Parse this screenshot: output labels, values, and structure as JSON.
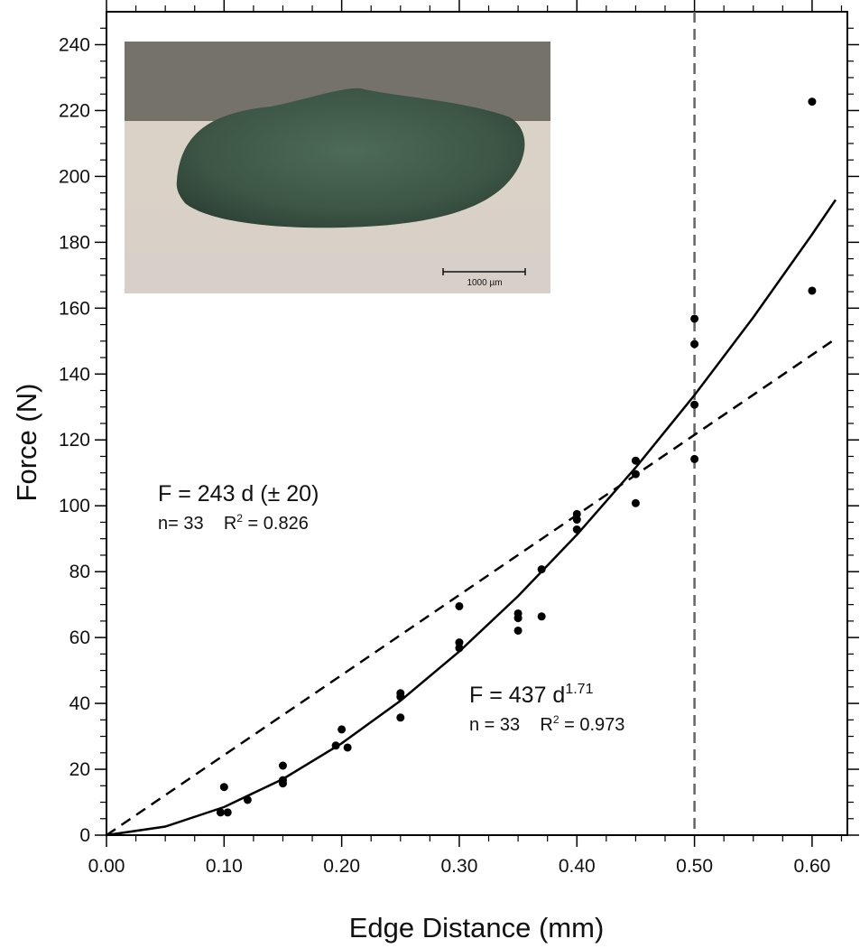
{
  "chart_data": {
    "type": "scatter",
    "x_label": "Edge Distance (mm)",
    "y_label": "Force (N)",
    "xlim": [
      0,
      0.63
    ],
    "ylim": [
      0,
      250
    ],
    "xticks": [
      {
        "value": 0,
        "label": "0.00"
      },
      {
        "value": 0.1,
        "label": "0.10"
      },
      {
        "value": 0.2,
        "label": "0.20"
      },
      {
        "value": 0.3,
        "label": "0.30"
      },
      {
        "value": 0.4,
        "label": "0.40"
      },
      {
        "value": 0.5,
        "label": "0.50"
      },
      {
        "value": 0.6,
        "label": "0.60"
      }
    ],
    "yticks": [
      0,
      20,
      40,
      60,
      80,
      100,
      120,
      140,
      160,
      180,
      200,
      220,
      240
    ],
    "grid": false,
    "color": "#000000",
    "x": [
      0.097,
      0.103,
      0.1,
      0.12,
      0.15,
      0.15,
      0.15,
      0.195,
      0.2,
      0.205,
      0.25,
      0.25,
      0.25,
      0.3,
      0.3,
      0.3,
      0.35,
      0.35,
      0.35,
      0.37,
      0.37,
      0.4,
      0.4,
      0.4,
      0.45,
      0.45,
      0.45,
      0.5,
      0.5,
      0.5,
      0.5,
      0.6,
      0.6
    ],
    "values": [
      6.9,
      6.9,
      14.6,
      10.7,
      21.1,
      16.7,
      15.7,
      27.2,
      32.1,
      26.6,
      43.1,
      42.0,
      35.7,
      69.5,
      58.5,
      56.8,
      67.3,
      65.9,
      62.1,
      80.7,
      66.4,
      97.5,
      95.8,
      92.8,
      113.7,
      109.6,
      100.8,
      156.8,
      149.1,
      130.7,
      114.2,
      222.7,
      165.3
    ],
    "fits": [
      {
        "dashed": true,
        "color": "#000000",
        "x": [
          0,
          0.62
        ],
        "values": [
          0,
          150.7
        ]
      },
      {
        "dashed": false,
        "color": "#000000",
        "x": [
          0,
          0.05,
          0.1,
          0.15,
          0.2,
          0.25,
          0.3,
          0.35,
          0.4,
          0.45,
          0.5,
          0.55,
          0.6,
          0.62
        ],
        "values": [
          0,
          2.6,
          8.53,
          17.03,
          27.88,
          40.82,
          55.76,
          72.58,
          91.2,
          111.6,
          133.6,
          157.2,
          182.4,
          192.9
        ]
      }
    ],
    "vline": {
      "value": 0.5,
      "color": "#666666"
    },
    "annotations": [
      {
        "lines": [
          [
            {
              "text": "F = 243 d (± 20)"
            }
          ],
          [
            {
              "text": "n= 33    R"
            },
            {
              "text": "2",
              "sup": true
            },
            {
              "text": " = 0.826"
            }
          ]
        ]
      },
      {
        "lines": [
          [
            {
              "text": "F = 437 d"
            },
            {
              "text": "1.71",
              "sup": true
            }
          ],
          [
            {
              "text": "n = 33    R"
            },
            {
              "text": "2",
              "sup": true
            },
            {
              "text": " = 0.973"
            }
          ]
        ]
      }
    ],
    "inset_scale_label": "1000 µm"
  }
}
